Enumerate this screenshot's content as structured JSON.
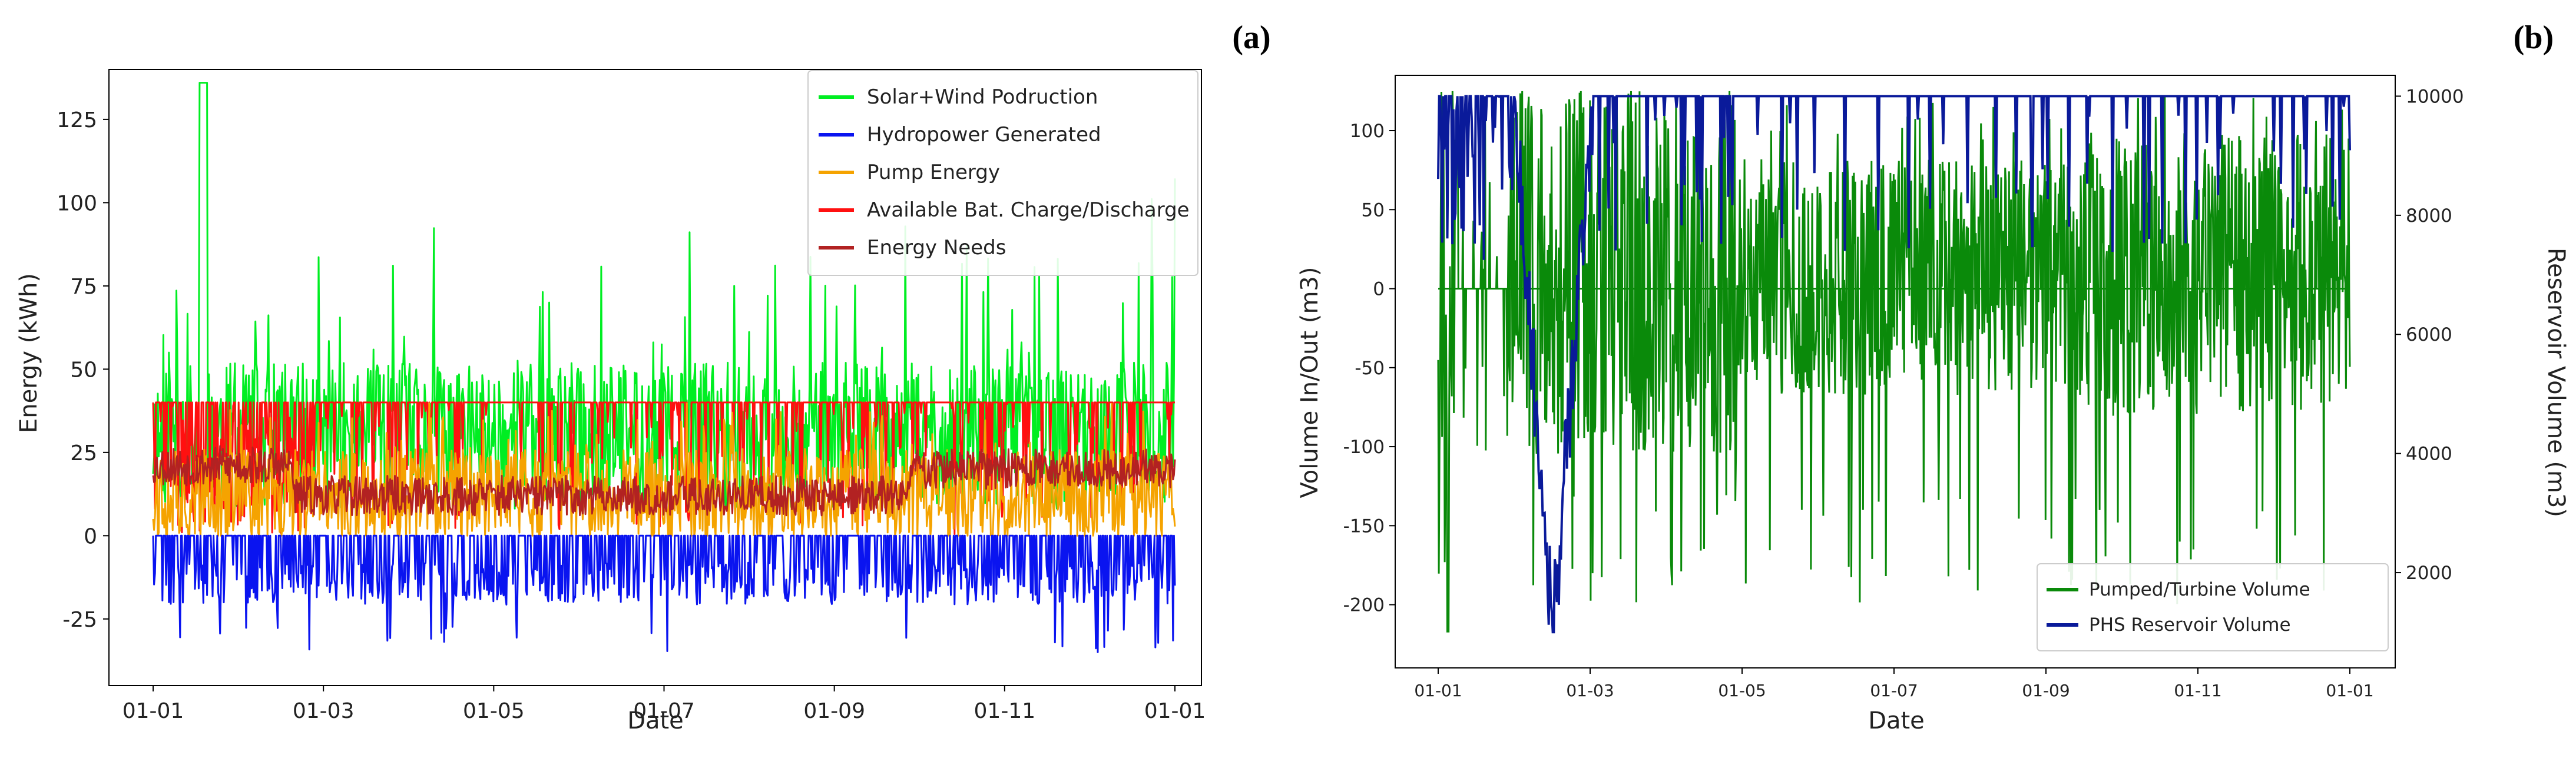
{
  "chart_data": [
    {
      "id": "a",
      "type": "line",
      "panel_label": "(a)",
      "xlabel": "Date",
      "ylabel": "Energy (kWh)",
      "ylim": [
        -45,
        140
      ],
      "yticks": [
        -25,
        0,
        25,
        50,
        75,
        100,
        125
      ],
      "xticks": [
        "01-01",
        "01-03",
        "01-05",
        "01-07",
        "01-09",
        "01-11",
        "01-01"
      ],
      "x_unit": "day-of-year",
      "x_range": [
        0,
        365
      ],
      "legend_position": "top-right",
      "series": [
        {
          "name": "Solar+Wind Podruction",
          "color": "#00ee22",
          "base": 30,
          "spread": 22,
          "peak_max": 136,
          "floor": 0,
          "seed": 11
        },
        {
          "name": "Hydropower Generated",
          "color": "#0a14f0",
          "base": -8,
          "spread": 8,
          "peak_min": -35,
          "ceiling": 0,
          "seed": 23
        },
        {
          "name": "Pump Energy",
          "color": "#f5a300",
          "base": 12,
          "spread": 14,
          "floor": 0,
          "ceiling": 40,
          "seed": 37
        },
        {
          "name": "Available Bat. Charge/Discharge",
          "color": "#ff1010",
          "base": 40,
          "spread": 0,
          "floor": 0,
          "ceiling": 40,
          "seed": 41
        },
        {
          "name": "Energy Needs",
          "color": "#b22222",
          "base": 15,
          "spread": 6,
          "floor": 0,
          "ceiling": 40,
          "seed": 53
        }
      ]
    },
    {
      "id": "b",
      "type": "line",
      "panel_label": "(b)",
      "xlabel": "Date",
      "ylabel": "Volume In/Out (m3)",
      "ylabel_right": "Reservoir Volume (m3)",
      "ylim": [
        -240,
        135
      ],
      "yticks": [
        -200,
        -150,
        -100,
        -50,
        0,
        50,
        100
      ],
      "ylim_right": [
        400,
        10350
      ],
      "yticks_right": [
        2000,
        4000,
        6000,
        8000,
        10000
      ],
      "xticks": [
        "01-01",
        "01-03",
        "01-05",
        "01-07",
        "01-09",
        "01-11",
        "01-01"
      ],
      "x_unit": "day-of-year",
      "x_range": [
        0,
        365
      ],
      "legend_position": "bottom-right",
      "series": [
        {
          "name": "Pumped/Turbine Volume",
          "color": "#0a8a0a",
          "axis": "left",
          "min": -217,
          "max": 125,
          "seed": 67
        },
        {
          "name": "PHS Reservoir Volume",
          "color": "#0a1a9a",
          "axis": "right",
          "min": 1000,
          "max": 10000,
          "seed": 79
        }
      ]
    }
  ]
}
